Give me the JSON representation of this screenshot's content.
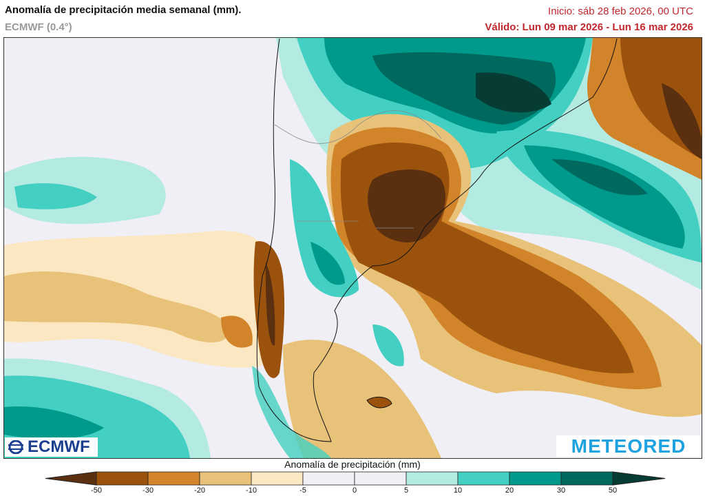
{
  "header": {
    "title": "Anomalía de precipitación media semanal (mm).",
    "model": "ECMWF (0.4°)",
    "init": "Inicio:  sáb 28 feb 2026, 00 UTC",
    "valid": "Válido: Lun 09 mar 2026 - Lun 16 mar 2026"
  },
  "map": {
    "logos": {
      "left": "ECMWF",
      "right": "METEORED"
    }
  },
  "colorbar": {
    "title": "Anomalía de precipitación (mm)",
    "ticks": [
      "-50",
      "-30",
      "-20",
      "-10",
      "-5",
      "0",
      "5",
      "10",
      "20",
      "30",
      "50"
    ],
    "colors": [
      "#5b3011",
      "#9a520c",
      "#d1842a",
      "#e9c27a",
      "#fbe8c2",
      "#efeff5",
      "#efeff5",
      "#b3ebe3",
      "#43cfc1",
      "#009a8d",
      "#00695e",
      "#063c33"
    ]
  }
}
